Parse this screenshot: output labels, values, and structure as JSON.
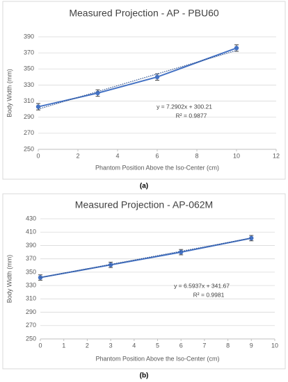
{
  "chart_data": [
    {
      "type": "line",
      "title": "Measured Projection - AP - PBU60",
      "caption": "(a)",
      "x_label": "Phantom Position Above the Iso-Center (cm)",
      "y_label": "Body Width (mm)",
      "xlim": [
        0,
        12
      ],
      "xticks": [
        0,
        2,
        4,
        6,
        8,
        10,
        12
      ],
      "ylim": [
        250,
        390
      ],
      "yticks": [
        250,
        270,
        290,
        310,
        330,
        350,
        370,
        390
      ],
      "grid": true,
      "series": [
        {
          "color": "#4472c4",
          "style": "solid",
          "x": [
            0,
            3,
            6,
            10
          ],
          "values": [
            303,
            320,
            340,
            376
          ],
          "errors": [
            4,
            4,
            4,
            4
          ]
        },
        {
          "color": "#2f528f",
          "style": "dotted",
          "x": [
            0,
            10
          ],
          "values": [
            300,
            373
          ]
        }
      ],
      "annotations": [
        "y = 7.2902x + 300.21",
        "R² = 0.9877"
      ]
    },
    {
      "type": "line",
      "title": "Measured Projection - AP-062M",
      "caption": "(b)",
      "x_label": "Phantom Position Above the Iso-Center (cm)",
      "y_label": "Body Width (mm)",
      "xlim": [
        0,
        10
      ],
      "xticks": [
        0,
        1,
        2,
        3,
        4,
        5,
        6,
        7,
        8,
        9,
        10
      ],
      "ylim": [
        250,
        430
      ],
      "yticks": [
        250,
        270,
        290,
        310,
        330,
        350,
        370,
        390,
        410,
        430
      ],
      "grid": true,
      "series": [
        {
          "color": "#4472c4",
          "style": "solid",
          "x": [
            0,
            3,
            6,
            9
          ],
          "values": [
            342,
            361,
            380,
            401
          ],
          "errors": [
            4,
            4,
            4,
            4
          ]
        },
        {
          "color": "#2f528f",
          "style": "dotted",
          "x": [
            0,
            9
          ],
          "values": [
            342,
            401
          ]
        }
      ],
      "annotations": [
        "y = 6.5937x + 341.67",
        "R² = 0.9981"
      ]
    }
  ]
}
